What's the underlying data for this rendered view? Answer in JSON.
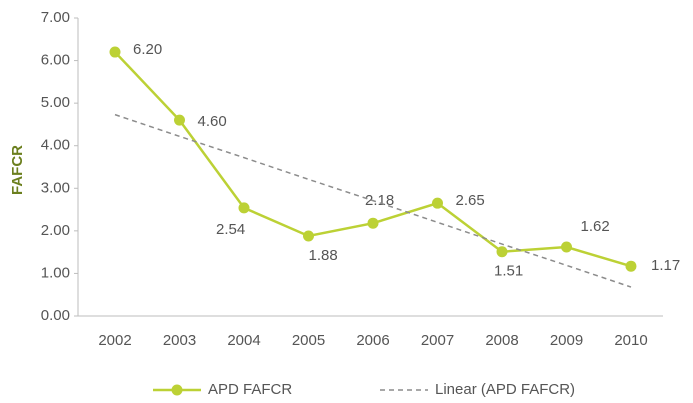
{
  "chart_data": {
    "type": "line",
    "y_label": "FAFCR",
    "categories": [
      "2002",
      "2003",
      "2004",
      "2005",
      "2006",
      "2007",
      "2008",
      "2009",
      "2010"
    ],
    "series": [
      {
        "name": "APD FAFCR",
        "color": "#bcd135",
        "style": "solid",
        "markers": true,
        "values": [
          6.2,
          4.6,
          2.54,
          1.88,
          2.18,
          2.65,
          1.51,
          1.62,
          1.17
        ],
        "value_labels": [
          "6.20",
          "4.60",
          "2.54",
          "1.88",
          "2.18",
          "2.65",
          "1.51",
          "1.62",
          "1.17"
        ]
      },
      {
        "name": "Linear (APD FAFCR)",
        "color": "#8c8c8c",
        "style": "dashed",
        "markers": false,
        "values": [
          4.73,
          4.22,
          3.72,
          3.21,
          2.71,
          2.2,
          1.69,
          1.19,
          0.68
        ]
      }
    ],
    "ylim": [
      0,
      7
    ],
    "yticks": [
      {
        "value": 0,
        "label": "0.00"
      },
      {
        "value": 1,
        "label": "1.00"
      },
      {
        "value": 2,
        "label": "2.00"
      },
      {
        "value": 3,
        "label": "3.00"
      },
      {
        "value": 4,
        "label": "4.00"
      },
      {
        "value": 5,
        "label": "5.00"
      },
      {
        "value": 6,
        "label": "6.00"
      },
      {
        "value": 7,
        "label": "7.00"
      }
    ],
    "grid": false,
    "legend": "bottom"
  }
}
